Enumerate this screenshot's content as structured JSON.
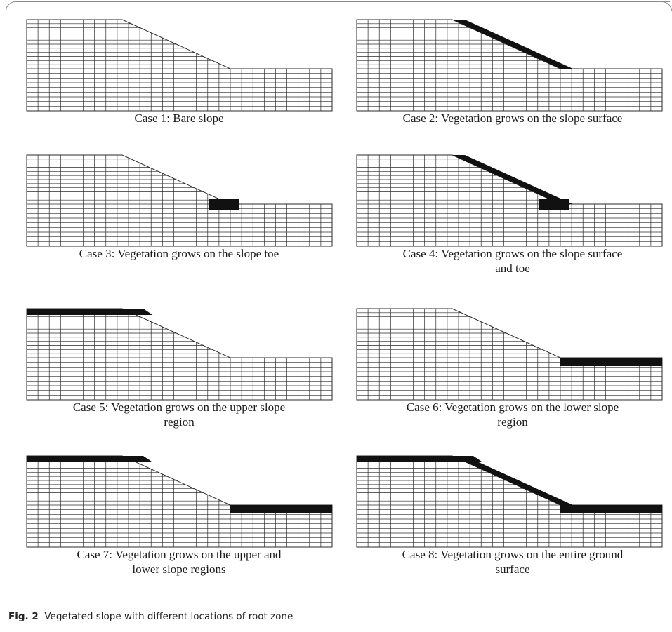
{
  "figure": {
    "label": "Fig. 2",
    "caption": "Vegetated slope with different locations of root zone"
  },
  "panels": [
    {
      "case": 1,
      "line1": "Case 1: Bare slope",
      "line2": "",
      "root_zone": []
    },
    {
      "case": 2,
      "line1": "Case 2: Vegetation grows on the slope surface",
      "line2": "",
      "root_zone": [
        "slope"
      ]
    },
    {
      "case": 3,
      "line1": "Case 3: Vegetation grows on the slope toe",
      "line2": "",
      "root_zone": [
        "toe"
      ]
    },
    {
      "case": 4,
      "line1": "Case 4: Vegetation grows on the slope surface",
      "line2": "and toe",
      "root_zone": [
        "slope",
        "toe"
      ]
    },
    {
      "case": 5,
      "line1": "Case 5: Vegetation grows on the upper slope",
      "line2": "region",
      "root_zone": [
        "upper"
      ]
    },
    {
      "case": 6,
      "line1": "Case 6: Vegetation grows on the lower slope",
      "line2": "region",
      "root_zone": [
        "lower"
      ]
    },
    {
      "case": 7,
      "line1": "Case 7: Vegetation grows on the upper and",
      "line2": "lower slope regions",
      "root_zone": [
        "upper",
        "lower"
      ]
    },
    {
      "case": 8,
      "line1": "Case 8: Vegetation grows on the entire ground",
      "line2": "surface",
      "root_zone": [
        "upper",
        "slope",
        "lower"
      ]
    }
  ],
  "colors": {
    "mesh": "#2a2a2a",
    "root_zone": "#111111",
    "frame": "#8a8a8a"
  }
}
